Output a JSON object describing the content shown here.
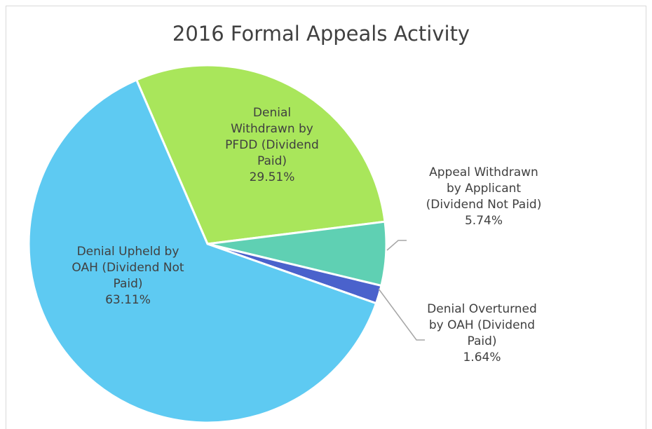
{
  "chart_data": {
    "type": "pie",
    "title": "2016 Formal Appeals Activity",
    "categories": [
      "Denial Withdrawn by PFDD (Dividend Paid)",
      "Appeal Withdrawn by Applicant (Dividend Not Paid)",
      "Denial Overturned by OAH (Dividend Paid)",
      "Denial Upheld by OAH (Dividend Not Paid)"
    ],
    "values": [
      29.51,
      5.74,
      1.64,
      63.11
    ],
    "value_labels": [
      "29.51%",
      "5.74%",
      "1.64%",
      "63.11%"
    ],
    "colors": [
      "#a9e65b",
      "#5fd0b3",
      "#4a62cc",
      "#5ecaf2"
    ]
  }
}
